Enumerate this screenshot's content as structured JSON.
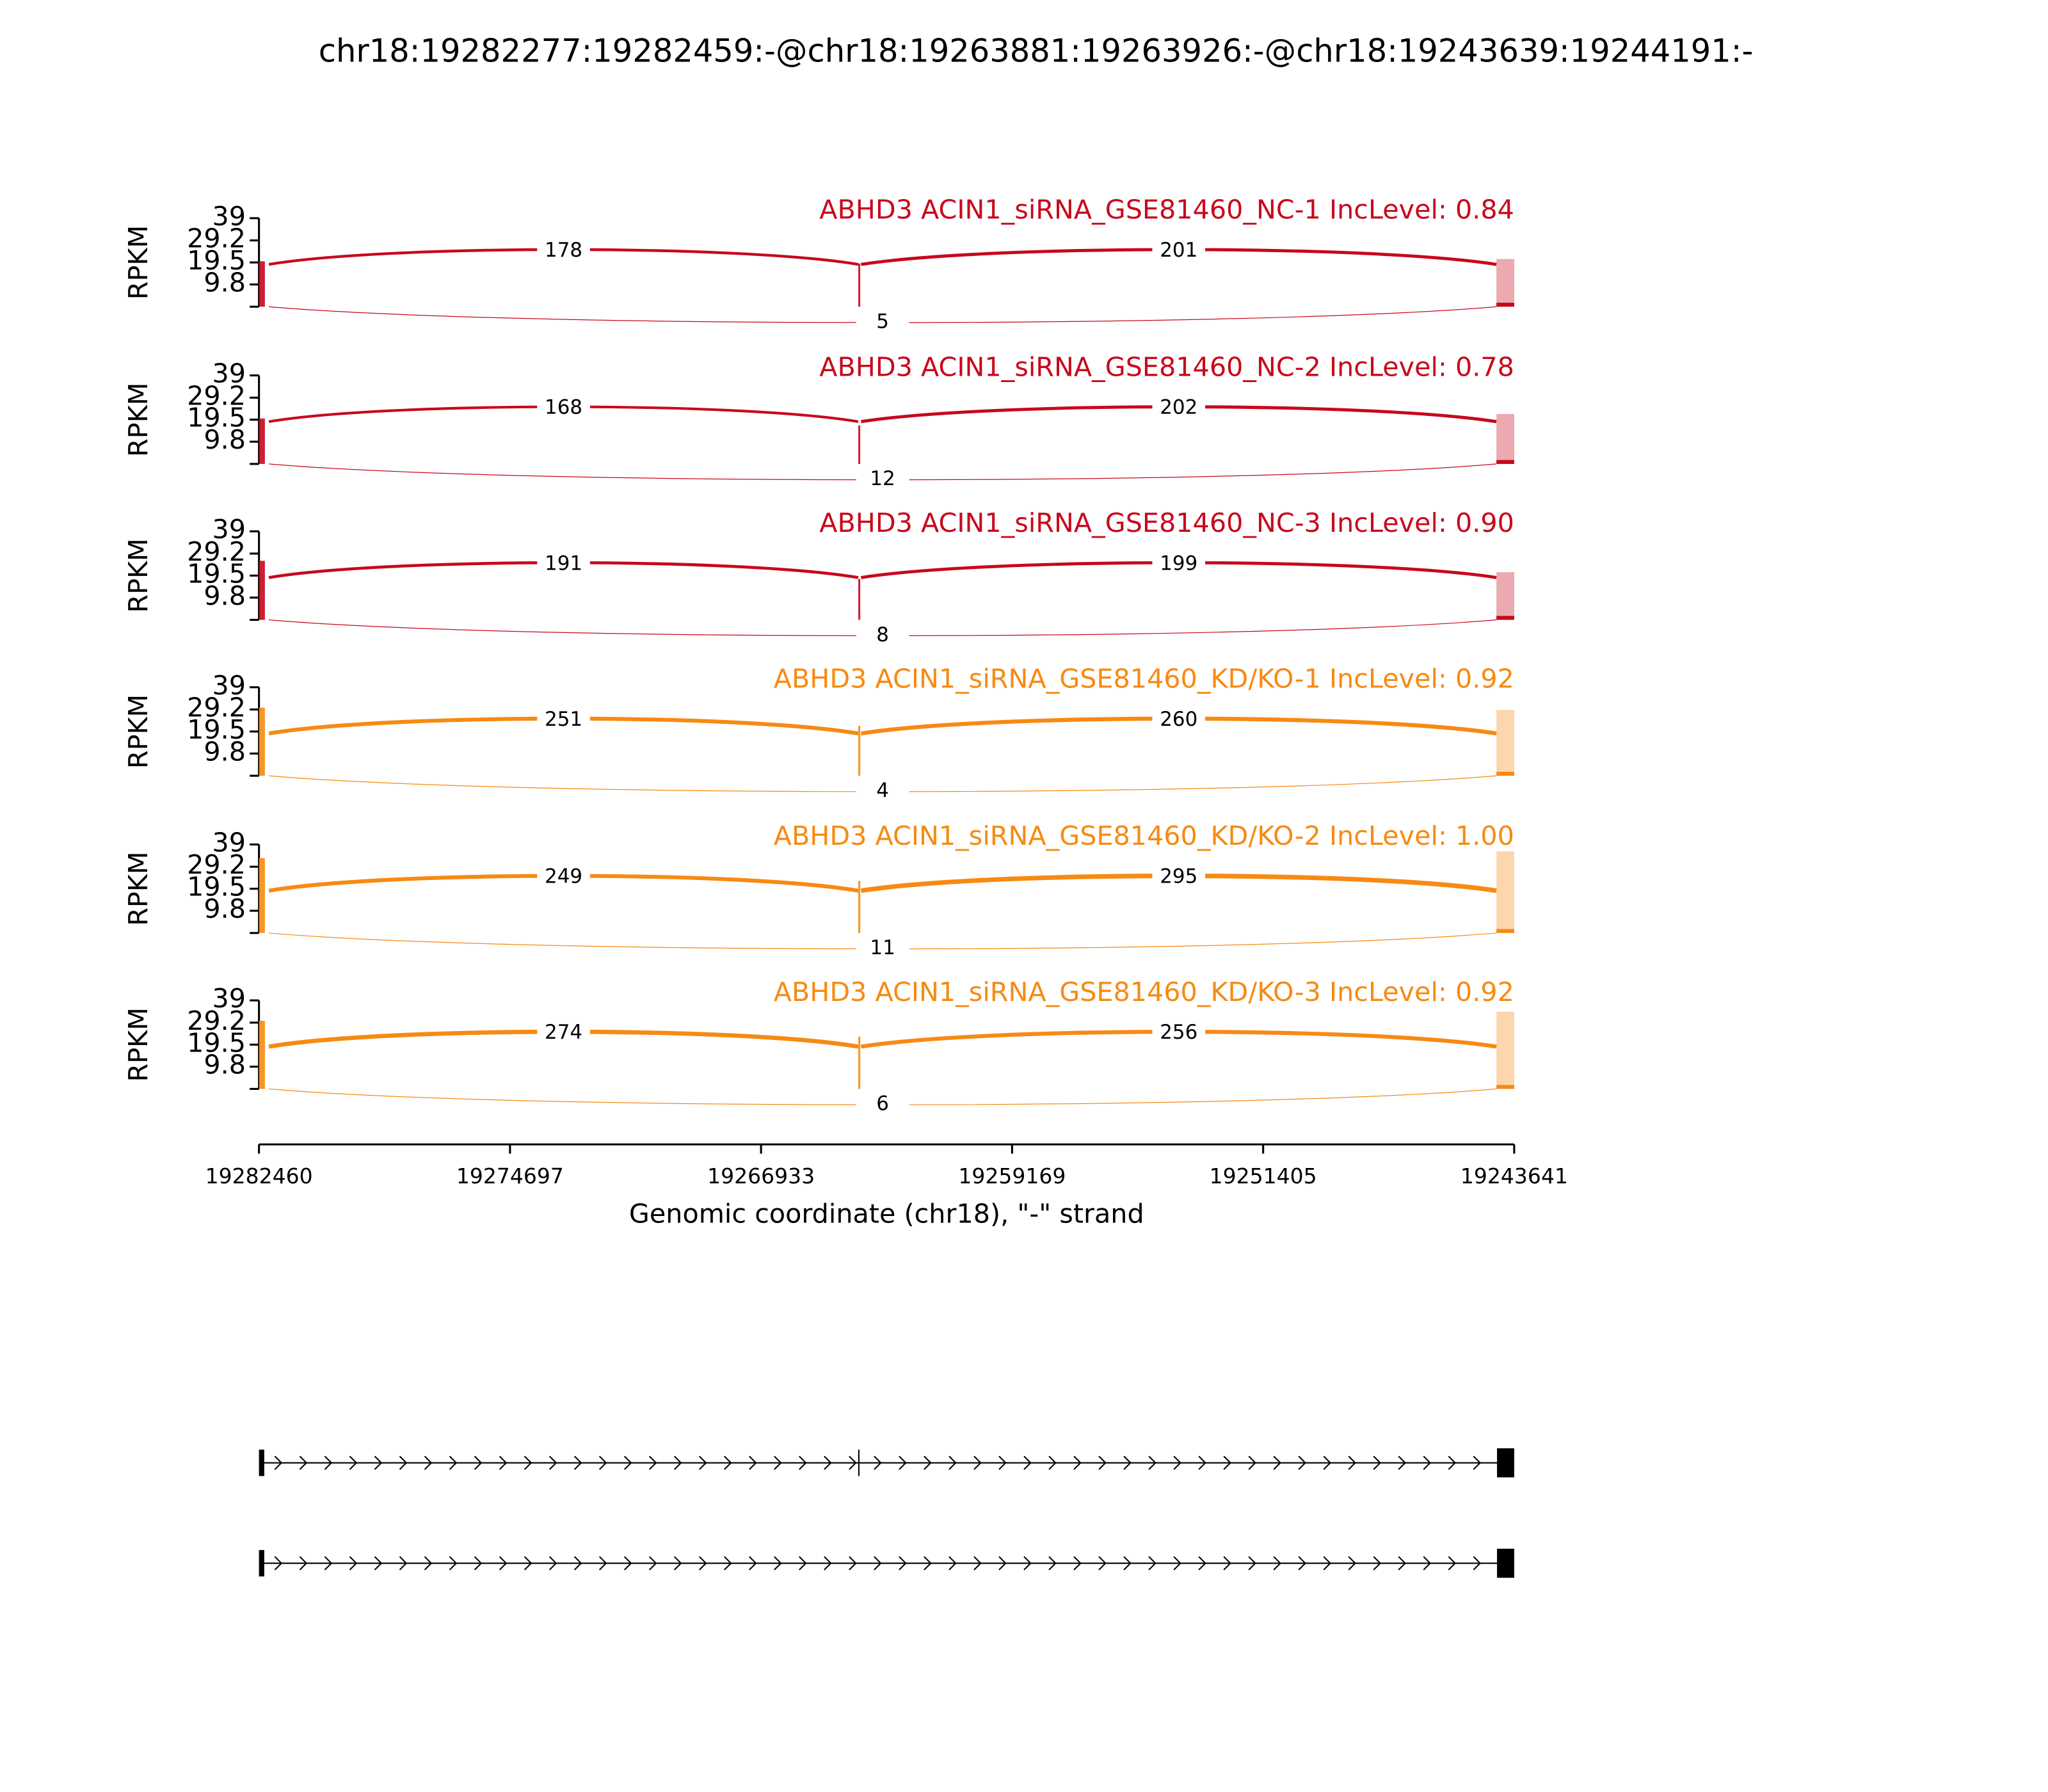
{
  "chart_data": {
    "type": "sashimi",
    "title": "chr18:19282277:19282459:-@chr18:19263881:19263926:-@chr18:19243639:19244191:-",
    "ylabel": "RPKM",
    "xlabel": "Genomic coordinate (chr18), \"-\" strand",
    "ylim": [
      0,
      39
    ],
    "yticks": [
      9.8,
      19.5,
      29.2,
      39
    ],
    "xlim": [
      19282460,
      19243641
    ],
    "xticks": [
      19282460,
      19274697,
      19266933,
      19259169,
      19251405,
      19243641
    ],
    "exons": [
      [
        19282459,
        19282277
      ],
      [
        19263926,
        19263881
      ],
      [
        19244191,
        19243639
      ]
    ],
    "panels": [
      {
        "name": "ABHD3 ACIN1_siRNA_GSE81460_NC-1 IncLevel: 0.84",
        "color": "#c8081c",
        "junctions": [
          178,
          201,
          5
        ],
        "exon_rpkm": [
          20,
          19,
          21
        ]
      },
      {
        "name": "ABHD3 ACIN1_siRNA_GSE81460_NC-2 IncLevel: 0.78",
        "color": "#c8081c",
        "junctions": [
          168,
          202,
          12
        ],
        "exon_rpkm": [
          20,
          17,
          22
        ]
      },
      {
        "name": "ABHD3 ACIN1_siRNA_GSE81460_NC-3 IncLevel: 0.90",
        "color": "#c8081c",
        "junctions": [
          191,
          199,
          8
        ],
        "exon_rpkm": [
          26,
          18,
          21
        ]
      },
      {
        "name": "ABHD3 ACIN1_siRNA_GSE81460_KD/KO-1 IncLevel: 0.92",
        "color": "#f78a12",
        "junctions": [
          251,
          260,
          4
        ],
        "exon_rpkm": [
          30,
          22,
          29
        ]
      },
      {
        "name": "ABHD3 ACIN1_siRNA_GSE81460_KD/KO-2 IncLevel: 1.00",
        "color": "#f78a12",
        "junctions": [
          249,
          295,
          11
        ],
        "exon_rpkm": [
          33,
          23,
          36
        ]
      },
      {
        "name": "ABHD3 ACIN1_siRNA_GSE81460_KD/KO-3 IncLevel: 0.92",
        "color": "#f78a12",
        "junctions": [
          274,
          256,
          6
        ],
        "exon_rpkm": [
          30,
          23,
          34
        ]
      }
    ]
  }
}
